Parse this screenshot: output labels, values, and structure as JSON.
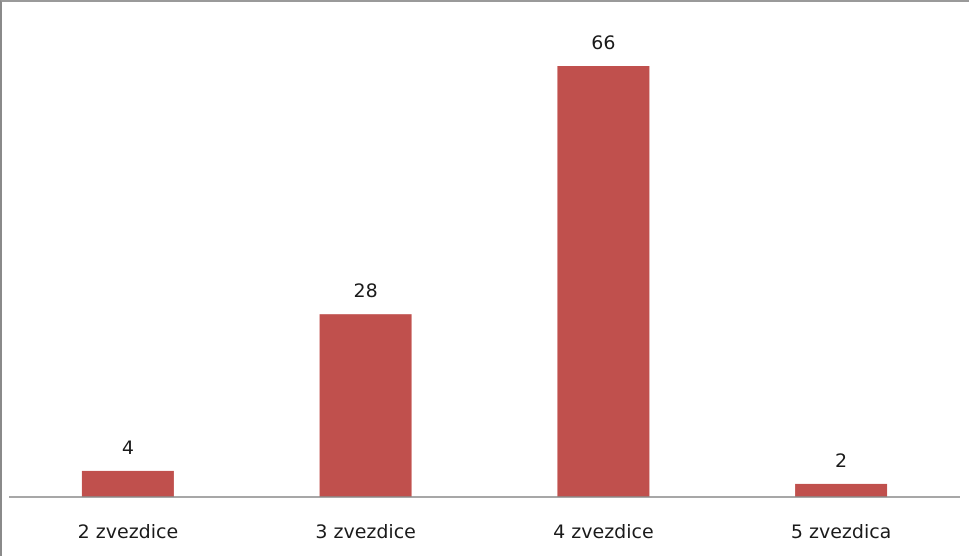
{
  "chart_data": {
    "type": "bar",
    "categories": [
      "2 zvezdice",
      "3 zvezdice",
      "4 zvezdice",
      "5 zvezdica"
    ],
    "values": [
      4,
      28,
      66,
      2
    ],
    "data_labels": [
      "4",
      "28",
      "66",
      "2"
    ],
    "title": "",
    "xlabel": "",
    "ylabel": "",
    "ylim": [
      0,
      70
    ],
    "grid": false,
    "legend": "none",
    "colors": {
      "bar": "#c0504d",
      "axis": "#8a8a8a",
      "text": "#1a1a1a"
    }
  }
}
